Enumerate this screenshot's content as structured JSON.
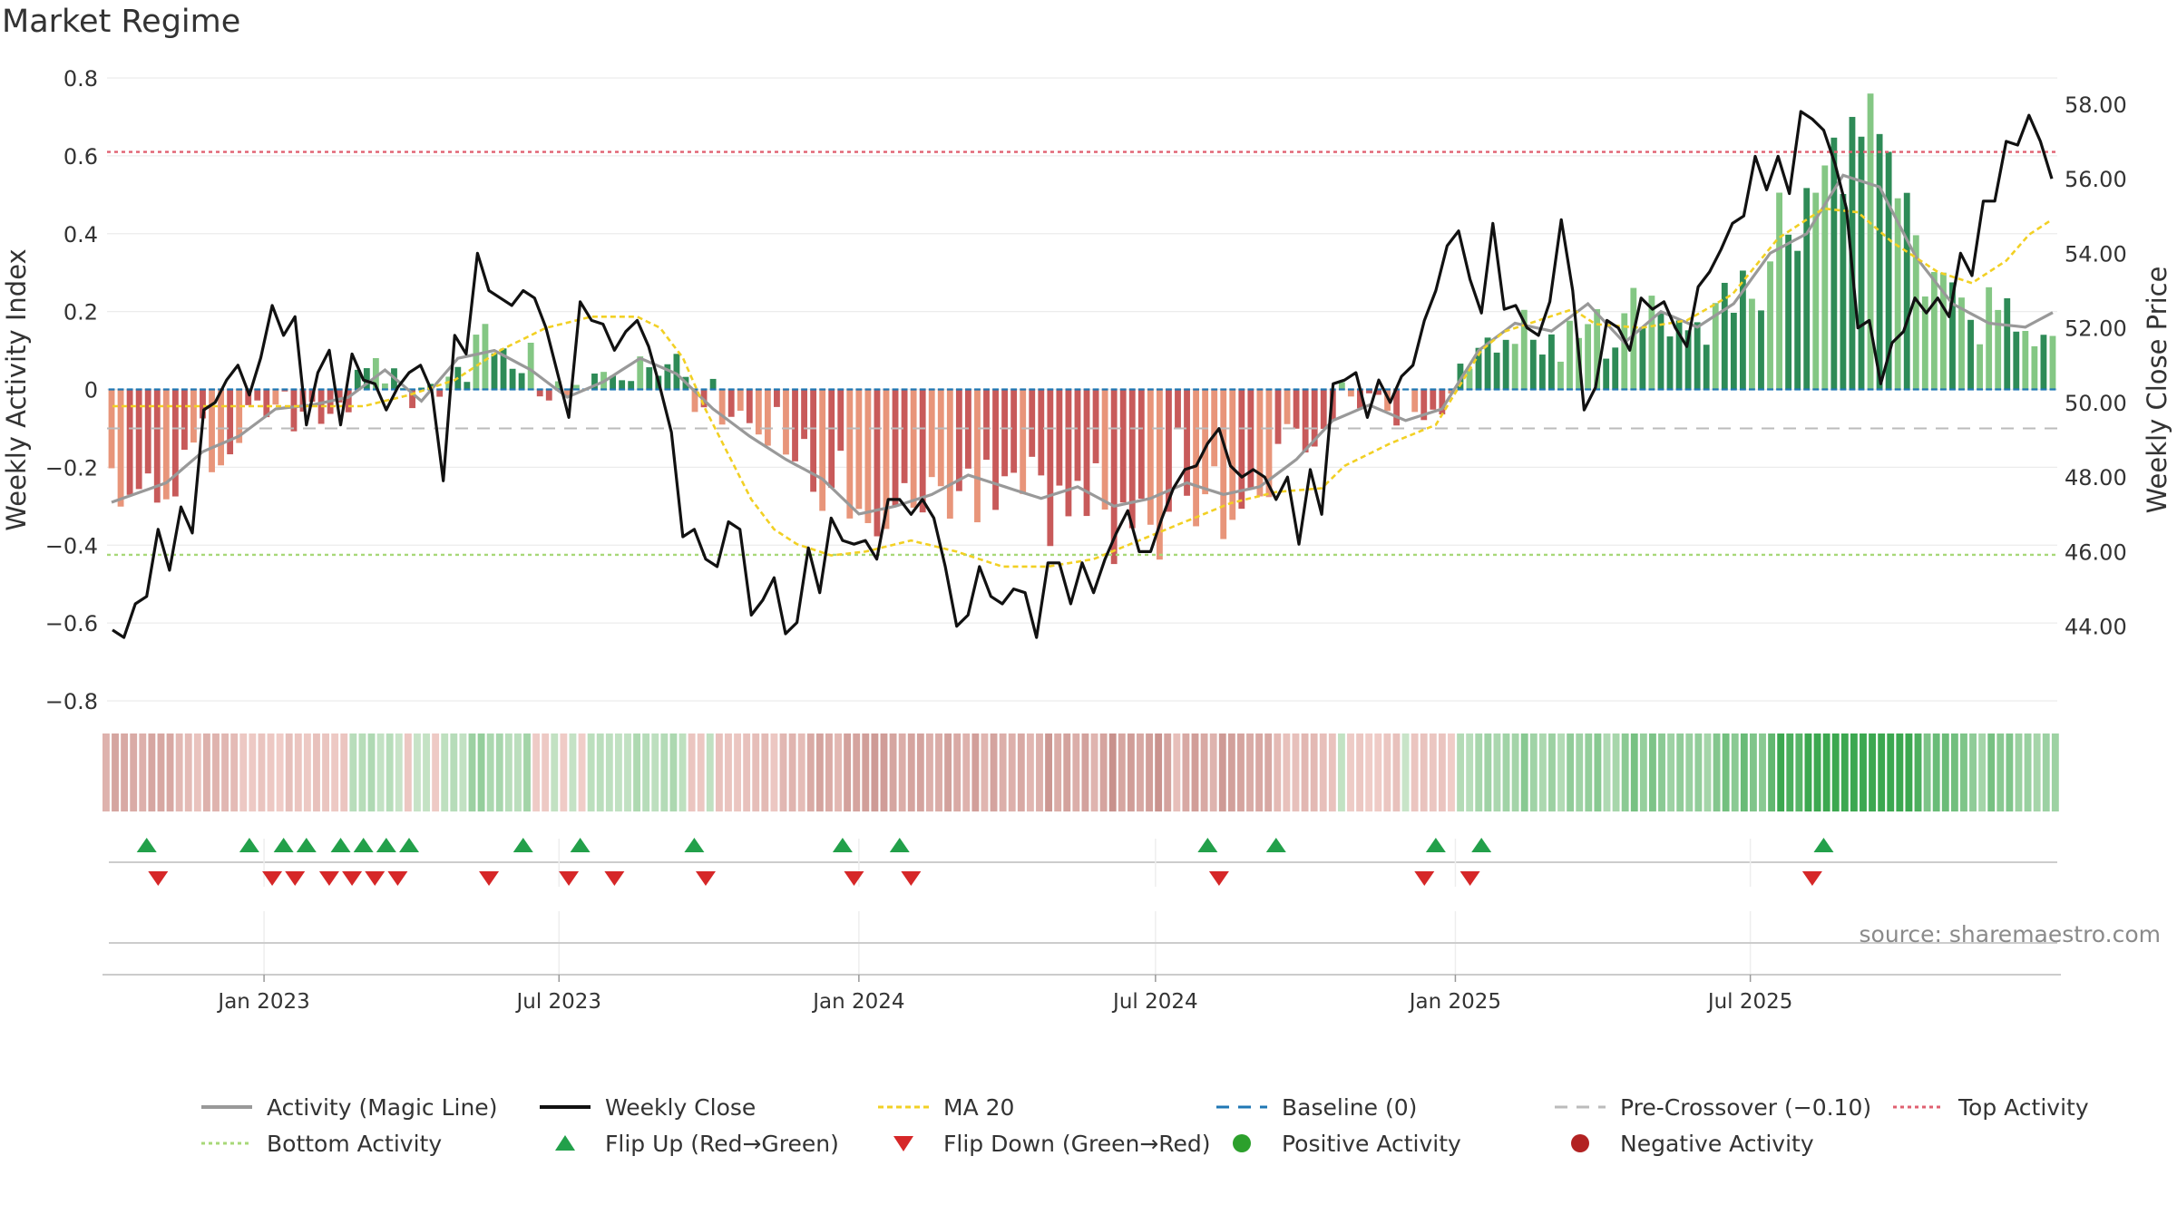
{
  "chart_data": {
    "type": "bar",
    "title": "Market Regime",
    "ylabel": "Weekly Activity Index",
    "ylabel_right": "Weekly Close Price",
    "ylim": [
      -0.8,
      0.8
    ],
    "ylim_right": [
      42.0,
      58.7
    ],
    "yticks": [
      "0.8",
      "0.6",
      "0.4",
      "0.2",
      "0",
      "−0.2",
      "−0.4",
      "−0.6",
      "−0.8"
    ],
    "yticks_right": [
      "58.00",
      "56.00",
      "54.00",
      "52.00",
      "50.00",
      "48.00",
      "46.00",
      "44.00"
    ],
    "x_ticks": [
      "Jan 2023",
      "Jul 2023",
      "Jan 2024",
      "Jul 2024",
      "Jan 2025",
      "Jul 2025"
    ],
    "start_date": "2022-09-30",
    "top_activity": 0.61,
    "bottom_activity": -0.425,
    "pre_crossover": -0.1,
    "baseline": 0,
    "activity_anchors": [
      [
        0,
        -0.29
      ],
      [
        6,
        -0.24
      ],
      [
        10,
        -0.16
      ],
      [
        14,
        -0.12
      ],
      [
        18,
        -0.05
      ],
      [
        22,
        -0.04
      ],
      [
        26,
        -0.02
      ],
      [
        30,
        0.05
      ],
      [
        34,
        -0.03
      ],
      [
        38,
        0.08
      ],
      [
        42,
        0.1
      ],
      [
        46,
        0.05
      ],
      [
        50,
        -0.02
      ],
      [
        54,
        0.02
      ],
      [
        58,
        0.08
      ],
      [
        62,
        0.04
      ],
      [
        66,
        -0.05
      ],
      [
        70,
        -0.12
      ],
      [
        74,
        -0.18
      ],
      [
        78,
        -0.23
      ],
      [
        82,
        -0.32
      ],
      [
        86,
        -0.3
      ],
      [
        90,
        -0.27
      ],
      [
        94,
        -0.22
      ],
      [
        98,
        -0.25
      ],
      [
        102,
        -0.28
      ],
      [
        106,
        -0.25
      ],
      [
        110,
        -0.3
      ],
      [
        114,
        -0.28
      ],
      [
        118,
        -0.24
      ],
      [
        122,
        -0.27
      ],
      [
        126,
        -0.25
      ],
      [
        130,
        -0.18
      ],
      [
        134,
        -0.08
      ],
      [
        138,
        -0.04
      ],
      [
        142,
        -0.08
      ],
      [
        146,
        -0.05
      ],
      [
        150,
        0.1
      ],
      [
        154,
        0.17
      ],
      [
        158,
        0.15
      ],
      [
        162,
        0.22
      ],
      [
        166,
        0.12
      ],
      [
        170,
        0.2
      ],
      [
        174,
        0.16
      ],
      [
        178,
        0.22
      ],
      [
        182,
        0.35
      ],
      [
        186,
        0.4
      ],
      [
        190,
        0.55
      ],
      [
        194,
        0.52
      ],
      [
        198,
        0.34
      ],
      [
        202,
        0.22
      ],
      [
        206,
        0.17
      ],
      [
        210,
        0.16
      ],
      [
        214,
        0.21
      ]
    ],
    "close_anchors": [
      [
        0,
        43.9
      ],
      [
        1,
        43.7
      ],
      [
        2,
        44.6
      ],
      [
        3,
        44.8
      ],
      [
        4,
        46.6
      ],
      [
        5,
        45.5
      ],
      [
        6,
        47.2
      ],
      [
        7,
        46.5
      ],
      [
        8,
        49.8
      ],
      [
        9,
        50.0
      ],
      [
        10,
        50.6
      ],
      [
        11,
        51.0
      ],
      [
        12,
        50.2
      ],
      [
        13,
        51.2
      ],
      [
        14,
        52.6
      ],
      [
        15,
        51.8
      ],
      [
        16,
        52.3
      ],
      [
        17,
        49.4
      ],
      [
        18,
        50.8
      ],
      [
        19,
        51.4
      ],
      [
        20,
        49.4
      ],
      [
        21,
        51.3
      ],
      [
        22,
        50.6
      ],
      [
        23,
        50.5
      ],
      [
        24,
        49.8
      ],
      [
        25,
        50.4
      ],
      [
        26,
        50.8
      ],
      [
        27,
        51.0
      ],
      [
        28,
        50.3
      ],
      [
        29,
        47.9
      ],
      [
        30,
        51.8
      ],
      [
        31,
        51.3
      ],
      [
        32,
        54.0
      ],
      [
        33,
        53.0
      ],
      [
        34,
        52.8
      ],
      [
        35,
        52.6
      ],
      [
        36,
        53.0
      ],
      [
        37,
        52.8
      ],
      [
        38,
        52.0
      ],
      [
        39,
        50.8
      ],
      [
        40,
        49.6
      ],
      [
        41,
        52.7
      ],
      [
        42,
        52.2
      ],
      [
        43,
        52.1
      ],
      [
        44,
        51.4
      ],
      [
        45,
        51.9
      ],
      [
        46,
        52.2
      ],
      [
        47,
        51.5
      ],
      [
        48,
        50.4
      ],
      [
        49,
        49.2
      ],
      [
        50,
        46.4
      ],
      [
        51,
        46.6
      ],
      [
        52,
        45.8
      ],
      [
        53,
        45.6
      ],
      [
        54,
        46.8
      ],
      [
        55,
        46.6
      ],
      [
        56,
        44.3
      ],
      [
        57,
        44.7
      ],
      [
        58,
        45.3
      ],
      [
        59,
        43.8
      ],
      [
        60,
        44.1
      ],
      [
        61,
        46.1
      ],
      [
        62,
        44.9
      ],
      [
        63,
        46.9
      ],
      [
        64,
        46.3
      ],
      [
        65,
        46.2
      ],
      [
        66,
        46.3
      ],
      [
        67,
        45.8
      ],
      [
        68,
        47.4
      ],
      [
        69,
        47.4
      ],
      [
        70,
        47.0
      ],
      [
        71,
        47.4
      ],
      [
        72,
        46.9
      ],
      [
        73,
        45.6
      ],
      [
        74,
        44.0
      ],
      [
        75,
        44.3
      ],
      [
        76,
        45.6
      ],
      [
        77,
        44.8
      ],
      [
        78,
        44.6
      ],
      [
        79,
        45.0
      ],
      [
        80,
        44.9
      ],
      [
        81,
        43.7
      ],
      [
        82,
        45.7
      ],
      [
        83,
        45.7
      ],
      [
        84,
        44.6
      ],
      [
        85,
        45.7
      ],
      [
        86,
        44.9
      ],
      [
        87,
        45.8
      ],
      [
        88,
        46.5
      ],
      [
        89,
        47.1
      ],
      [
        90,
        46.0
      ],
      [
        91,
        46.0
      ],
      [
        92,
        46.9
      ],
      [
        93,
        47.7
      ],
      [
        94,
        48.2
      ],
      [
        95,
        48.3
      ],
      [
        96,
        48.9
      ],
      [
        97,
        49.3
      ],
      [
        98,
        48.3
      ],
      [
        99,
        48.0
      ],
      [
        100,
        48.2
      ],
      [
        101,
        48.0
      ],
      [
        102,
        47.4
      ],
      [
        103,
        48.0
      ],
      [
        104,
        46.2
      ],
      [
        105,
        48.2
      ],
      [
        106,
        47.0
      ],
      [
        107,
        50.5
      ],
      [
        108,
        50.6
      ],
      [
        109,
        50.8
      ],
      [
        110,
        49.6
      ],
      [
        111,
        50.6
      ],
      [
        112,
        50.0
      ],
      [
        113,
        50.7
      ],
      [
        114,
        51.0
      ],
      [
        115,
        52.2
      ],
      [
        116,
        53.0
      ],
      [
        117,
        54.2
      ],
      [
        118,
        54.6
      ],
      [
        119,
        53.3
      ],
      [
        120,
        52.4
      ],
      [
        121,
        54.8
      ],
      [
        122,
        52.5
      ],
      [
        123,
        52.6
      ],
      [
        124,
        52.0
      ],
      [
        125,
        51.8
      ],
      [
        126,
        52.7
      ],
      [
        127,
        54.9
      ],
      [
        128,
        53.0
      ],
      [
        129,
        49.8
      ],
      [
        130,
        50.4
      ],
      [
        131,
        52.2
      ],
      [
        132,
        52.0
      ],
      [
        133,
        51.4
      ],
      [
        134,
        52.8
      ],
      [
        135,
        52.5
      ],
      [
        136,
        52.7
      ],
      [
        137,
        52.0
      ],
      [
        138,
        51.5
      ],
      [
        139,
        53.1
      ],
      [
        140,
        53.5
      ],
      [
        141,
        54.1
      ],
      [
        142,
        54.8
      ],
      [
        143,
        55.0
      ],
      [
        144,
        56.6
      ],
      [
        145,
        55.7
      ],
      [
        146,
        56.6
      ],
      [
        147,
        55.6
      ],
      [
        148,
        57.8
      ],
      [
        149,
        57.6
      ],
      [
        150,
        57.3
      ],
      [
        151,
        56.4
      ],
      [
        152,
        55.2
      ],
      [
        153,
        52.0
      ],
      [
        154,
        52.2
      ],
      [
        155,
        50.5
      ],
      [
        156,
        51.6
      ],
      [
        157,
        51.9
      ],
      [
        158,
        52.8
      ],
      [
        159,
        52.4
      ],
      [
        160,
        52.8
      ],
      [
        161,
        52.3
      ],
      [
        162,
        54.0
      ],
      [
        163,
        53.4
      ],
      [
        164,
        55.4
      ],
      [
        165,
        55.4
      ],
      [
        166,
        57.0
      ],
      [
        167,
        56.9
      ],
      [
        168,
        57.7
      ],
      [
        169,
        57.0
      ],
      [
        170,
        56.0
      ]
    ],
    "ma_anchors": [
      [
        0,
        49.9
      ],
      [
        6,
        49.9
      ],
      [
        12,
        49.9
      ],
      [
        18,
        49.9
      ],
      [
        22,
        49.9
      ],
      [
        26,
        50.2
      ],
      [
        30,
        50.6
      ],
      [
        34,
        51.4
      ],
      [
        38,
        52.0
      ],
      [
        42,
        52.3
      ],
      [
        46,
        52.3
      ],
      [
        48,
        52.0
      ],
      [
        50,
        51.2
      ],
      [
        52,
        49.8
      ],
      [
        54,
        48.6
      ],
      [
        56,
        47.4
      ],
      [
        58,
        46.6
      ],
      [
        60,
        46.2
      ],
      [
        63,
        45.9
      ],
      [
        66,
        46.0
      ],
      [
        70,
        46.3
      ],
      [
        74,
        46.0
      ],
      [
        78,
        45.6
      ],
      [
        82,
        45.6
      ],
      [
        86,
        45.8
      ],
      [
        90,
        46.3
      ],
      [
        94,
        46.8
      ],
      [
        98,
        47.3
      ],
      [
        102,
        47.6
      ],
      [
        106,
        47.7
      ],
      [
        108,
        48.3
      ],
      [
        112,
        48.9
      ],
      [
        116,
        49.4
      ],
      [
        118,
        50.4
      ],
      [
        120,
        51.4
      ],
      [
        122,
        51.9
      ],
      [
        126,
        52.3
      ],
      [
        128,
        52.5
      ],
      [
        130,
        52.1
      ],
      [
        134,
        52.0
      ],
      [
        138,
        52.2
      ],
      [
        142,
        52.9
      ],
      [
        146,
        54.4
      ],
      [
        150,
        55.2
      ],
      [
        153,
        55.1
      ],
      [
        156,
        54.3
      ],
      [
        160,
        53.5
      ],
      [
        163,
        53.2
      ],
      [
        166,
        53.8
      ],
      [
        168,
        54.5
      ],
      [
        170,
        54.9
      ]
    ],
    "flip_up_weeks": [
      3,
      12,
      15,
      17,
      20,
      22,
      24,
      26,
      36,
      41,
      51,
      64,
      69,
      96,
      102,
      116,
      120,
      150
    ],
    "flip_down_weeks": [
      4,
      14,
      16,
      19,
      21,
      23,
      25,
      33,
      40,
      44,
      52,
      65,
      70,
      97,
      115,
      119,
      149
    ],
    "bar_colors": {
      "pos_strong": "#2e8b57",
      "pos_light": "#84c784",
      "neg_strong": "#c85a5a",
      "neg_light": "#e8957a"
    },
    "colors": {
      "activity_line": "#999999",
      "weekly_close": "#111111",
      "ma20": "#f2d024",
      "baseline": "#1f77b4",
      "pre_crossover": "#bbbbbb",
      "top_activity": "#e06070",
      "bottom_activity": "#a8d878",
      "flip_up": "#22a04a",
      "flip_down": "#d62728",
      "positive": "#2ca02c",
      "negative": "#b22222"
    }
  },
  "legend": {
    "items": [
      {
        "label": "Activity (Magic Line)"
      },
      {
        "label": "Weekly Close"
      },
      {
        "label": "MA 20"
      },
      {
        "label": "Baseline (0)"
      },
      {
        "label": "Pre-Crossover (−0.10)"
      },
      {
        "label": "Top Activity"
      },
      {
        "label": "Bottom Activity"
      },
      {
        "label": "Flip Up (Red→Green)"
      },
      {
        "label": "Flip Down (Green→Red)"
      },
      {
        "label": "Positive Activity"
      },
      {
        "label": "Negative Activity"
      }
    ]
  },
  "source": "source: sharemaestro.com"
}
